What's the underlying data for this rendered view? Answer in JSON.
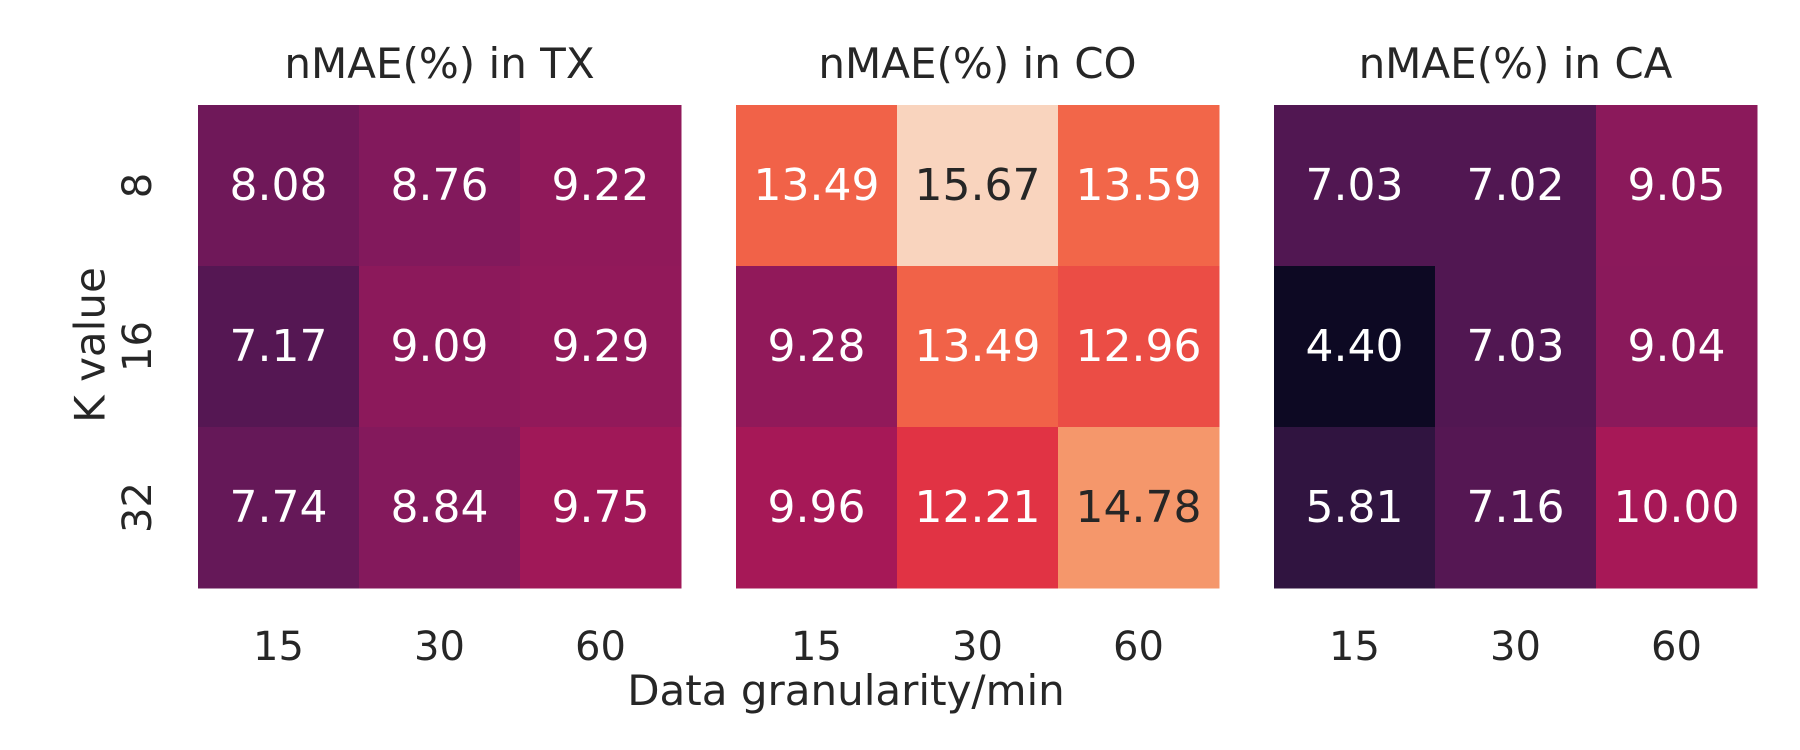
{
  "chart_data": {
    "type": "heatmap",
    "xlabel": "Data granularity/min",
    "ylabel": "K value",
    "x_categories": [
      "15",
      "30",
      "60"
    ],
    "y_categories": [
      "8",
      "16",
      "32"
    ],
    "color_range": [
      4.0,
      16.0
    ],
    "colormap": "rocket",
    "colors": {
      "light_text": "#ffffff",
      "dark_text": "#262626"
    },
    "panels": [
      {
        "title": "nMAE(%) in TX",
        "values": [
          [
            8.08,
            8.76,
            9.22
          ],
          [
            7.17,
            9.09,
            9.29
          ],
          [
            7.74,
            8.84,
            9.75
          ]
        ],
        "labels": [
          [
            "8.08",
            "8.76",
            "9.22"
          ],
          [
            "7.17",
            "9.09",
            "9.29"
          ],
          [
            "7.74",
            "8.84",
            "9.75"
          ]
        ]
      },
      {
        "title": "nMAE(%) in CO",
        "values": [
          [
            13.49,
            15.67,
            13.59
          ],
          [
            9.28,
            13.49,
            12.96
          ],
          [
            9.96,
            12.21,
            14.78
          ]
        ],
        "labels": [
          [
            "13.49",
            "15.67",
            "13.59"
          ],
          [
            "9.28",
            "13.49",
            "12.96"
          ],
          [
            "9.96",
            "12.21",
            "14.78"
          ]
        ]
      },
      {
        "title": "nMAE(%) in CA",
        "values": [
          [
            7.03,
            7.02,
            9.05
          ],
          [
            4.4,
            7.03,
            9.04
          ],
          [
            5.81,
            7.16,
            10.0
          ]
        ],
        "labels": [
          [
            "7.03",
            "7.02",
            "9.05"
          ],
          [
            "4.40",
            "7.03",
            "9.04"
          ],
          [
            "5.81",
            "7.16",
            "10.00"
          ]
        ]
      }
    ]
  }
}
